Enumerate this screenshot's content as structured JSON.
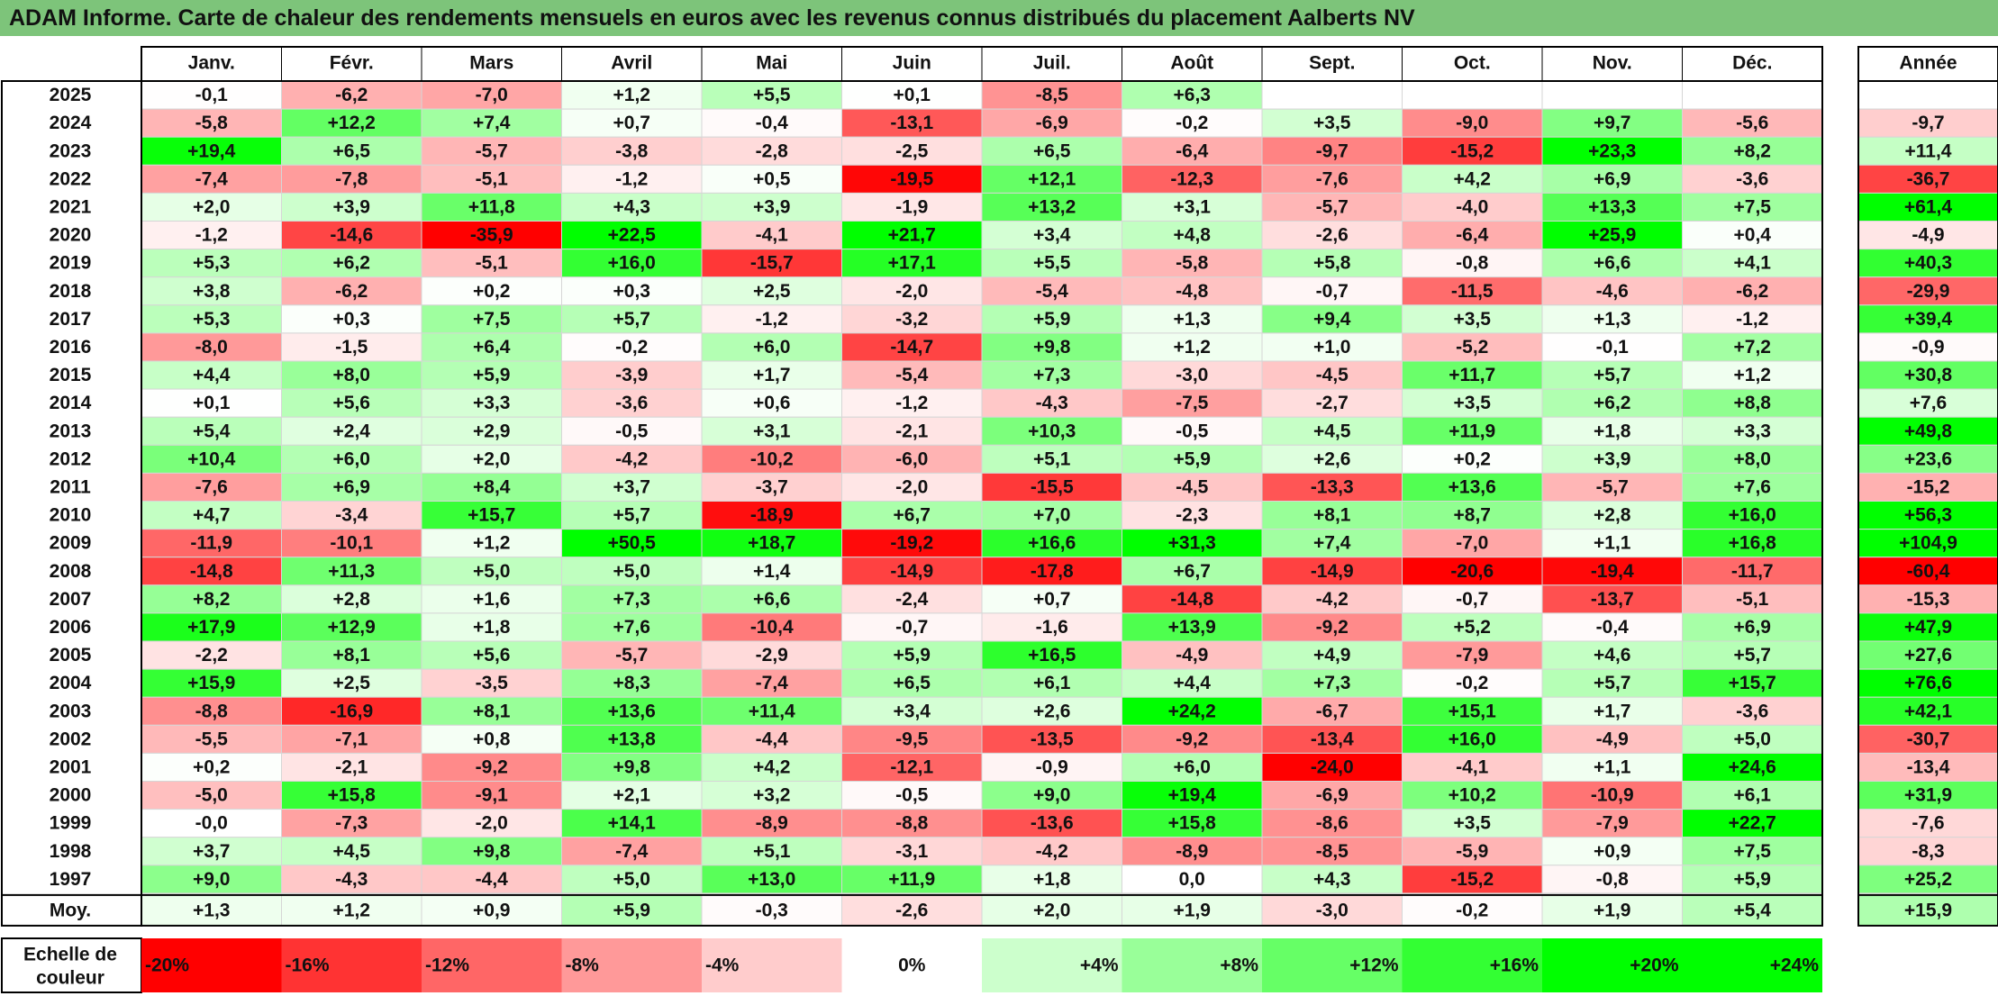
{
  "title": "ADAM Informe. Carte de chaleur des rendements mensuels en euros avec les revenus connus distribués du placement Aalberts NV",
  "chart_data": {
    "type": "heatmap",
    "title": "ADAM Informe. Carte de chaleur des rendements mensuels en euros avec les revenus connus distribués du placement Aalberts NV",
    "columns": [
      "Janv.",
      "Févr.",
      "Mars",
      "Avril",
      "Mai",
      "Juin",
      "Juil.",
      "Août",
      "Sept.",
      "Oct.",
      "Nov.",
      "Déc."
    ],
    "year_column_label": "Année",
    "rows": [
      {
        "year": "2025",
        "months": [
          "-0,1",
          "-6,2",
          "-7,0",
          "+1,2",
          "+5,5",
          "+0,1",
          "-8,5",
          "+6,3",
          "",
          "",
          "",
          ""
        ],
        "annual": ""
      },
      {
        "year": "2024",
        "months": [
          "-5,8",
          "+12,2",
          "+7,4",
          "+0,7",
          "-0,4",
          "-13,1",
          "-6,9",
          "-0,2",
          "+3,5",
          "-9,0",
          "+9,7",
          "-5,6"
        ],
        "annual": "-9,7"
      },
      {
        "year": "2023",
        "months": [
          "+19,4",
          "+6,5",
          "-5,7",
          "-3,8",
          "-2,8",
          "-2,5",
          "+6,5",
          "-6,4",
          "-9,7",
          "-15,2",
          "+23,3",
          "+8,2"
        ],
        "annual": "+11,4"
      },
      {
        "year": "2022",
        "months": [
          "-7,4",
          "-7,8",
          "-5,1",
          "-1,2",
          "+0,5",
          "-19,5",
          "+12,1",
          "-12,3",
          "-7,6",
          "+4,2",
          "+6,9",
          "-3,6"
        ],
        "annual": "-36,7"
      },
      {
        "year": "2021",
        "months": [
          "+2,0",
          "+3,9",
          "+11,8",
          "+4,3",
          "+3,9",
          "-1,9",
          "+13,2",
          "+3,1",
          "-5,7",
          "-4,0",
          "+13,3",
          "+7,5"
        ],
        "annual": "+61,4"
      },
      {
        "year": "2020",
        "months": [
          "-1,2",
          "-14,6",
          "-35,9",
          "+22,5",
          "-4,1",
          "+21,7",
          "+3,4",
          "+4,8",
          "-2,6",
          "-6,4",
          "+25,9",
          "+0,4"
        ],
        "annual": "-4,9"
      },
      {
        "year": "2019",
        "months": [
          "+5,3",
          "+6,2",
          "-5,1",
          "+16,0",
          "-15,7",
          "+17,1",
          "+5,5",
          "-5,8",
          "+5,8",
          "-0,8",
          "+6,6",
          "+4,1"
        ],
        "annual": "+40,3"
      },
      {
        "year": "2018",
        "months": [
          "+3,8",
          "-6,2",
          "+0,2",
          "+0,3",
          "+2,5",
          "-2,0",
          "-5,4",
          "-4,8",
          "-0,7",
          "-11,5",
          "-4,6",
          "-6,2"
        ],
        "annual": "-29,9"
      },
      {
        "year": "2017",
        "months": [
          "+5,3",
          "+0,3",
          "+7,5",
          "+5,7",
          "-1,2",
          "-3,2",
          "+5,9",
          "+1,3",
          "+9,4",
          "+3,5",
          "+1,3",
          "-1,2"
        ],
        "annual": "+39,4"
      },
      {
        "year": "2016",
        "months": [
          "-8,0",
          "-1,5",
          "+6,4",
          "-0,2",
          "+6,0",
          "-14,7",
          "+9,8",
          "+1,2",
          "+1,0",
          "-5,2",
          "-0,1",
          "+7,2"
        ],
        "annual": "-0,9"
      },
      {
        "year": "2015",
        "months": [
          "+4,4",
          "+8,0",
          "+5,9",
          "-3,9",
          "+1,7",
          "-5,4",
          "+7,3",
          "-3,0",
          "-4,5",
          "+11,7",
          "+5,7",
          "+1,2"
        ],
        "annual": "+30,8"
      },
      {
        "year": "2014",
        "months": [
          "+0,1",
          "+5,6",
          "+3,3",
          "-3,6",
          "+0,6",
          "-1,2",
          "-4,3",
          "-7,5",
          "-2,7",
          "+3,5",
          "+6,2",
          "+8,8"
        ],
        "annual": "+7,6"
      },
      {
        "year": "2013",
        "months": [
          "+5,4",
          "+2,4",
          "+2,9",
          "-0,5",
          "+3,1",
          "-2,1",
          "+10,3",
          "-0,5",
          "+4,5",
          "+11,9",
          "+1,8",
          "+3,3"
        ],
        "annual": "+49,8"
      },
      {
        "year": "2012",
        "months": [
          "+10,4",
          "+6,0",
          "+2,0",
          "-4,2",
          "-10,2",
          "-6,0",
          "+5,1",
          "+5,9",
          "+2,6",
          "+0,2",
          "+3,9",
          "+8,0"
        ],
        "annual": "+23,6"
      },
      {
        "year": "2011",
        "months": [
          "-7,6",
          "+6,9",
          "+8,4",
          "+3,7",
          "-3,7",
          "-2,0",
          "-15,5",
          "-4,5",
          "-13,3",
          "+13,6",
          "-5,7",
          "+7,6"
        ],
        "annual": "-15,2"
      },
      {
        "year": "2010",
        "months": [
          "+4,7",
          "-3,4",
          "+15,7",
          "+5,7",
          "-18,9",
          "+6,7",
          "+7,0",
          "-2,3",
          "+8,1",
          "+8,7",
          "+2,8",
          "+16,0"
        ],
        "annual": "+56,3"
      },
      {
        "year": "2009",
        "months": [
          "-11,9",
          "-10,1",
          "+1,2",
          "+50,5",
          "+18,7",
          "-19,2",
          "+16,6",
          "+31,3",
          "+7,4",
          "-7,0",
          "+1,1",
          "+16,8"
        ],
        "annual": "+104,9"
      },
      {
        "year": "2008",
        "months": [
          "-14,8",
          "+11,3",
          "+5,0",
          "+5,0",
          "+1,4",
          "-14,9",
          "-17,8",
          "+6,7",
          "-14,9",
          "-20,6",
          "-19,4",
          "-11,7"
        ],
        "annual": "-60,4"
      },
      {
        "year": "2007",
        "months": [
          "+8,2",
          "+2,8",
          "+1,6",
          "+7,3",
          "+6,6",
          "-2,4",
          "+0,7",
          "-14,8",
          "-4,2",
          "-0,7",
          "-13,7",
          "-5,1"
        ],
        "annual": "-15,3"
      },
      {
        "year": "2006",
        "months": [
          "+17,9",
          "+12,9",
          "+1,8",
          "+7,6",
          "-10,4",
          "-0,7",
          "-1,6",
          "+13,9",
          "-9,2",
          "+5,2",
          "-0,4",
          "+6,9"
        ],
        "annual": "+47,9"
      },
      {
        "year": "2005",
        "months": [
          "-2,2",
          "+8,1",
          "+5,6",
          "-5,7",
          "-2,9",
          "+5,9",
          "+16,5",
          "-4,9",
          "+4,9",
          "-7,9",
          "+4,6",
          "+5,7"
        ],
        "annual": "+27,6"
      },
      {
        "year": "2004",
        "months": [
          "+15,9",
          "+2,5",
          "-3,5",
          "+8,3",
          "-7,4",
          "+6,5",
          "+6,1",
          "+4,4",
          "+7,3",
          "-0,2",
          "+5,7",
          "+15,7"
        ],
        "annual": "+76,6"
      },
      {
        "year": "2003",
        "months": [
          "-8,8",
          "-16,9",
          "+8,1",
          "+13,6",
          "+11,4",
          "+3,4",
          "+2,6",
          "+24,2",
          "-6,7",
          "+15,1",
          "+1,7",
          "-3,6"
        ],
        "annual": "+42,1"
      },
      {
        "year": "2002",
        "months": [
          "-5,5",
          "-7,1",
          "+0,8",
          "+13,8",
          "-4,4",
          "-9,5",
          "-13,5",
          "-9,2",
          "-13,4",
          "+16,0",
          "-4,9",
          "+5,0"
        ],
        "annual": "-30,7"
      },
      {
        "year": "2001",
        "months": [
          "+0,2",
          "-2,1",
          "-9,2",
          "+9,8",
          "+4,2",
          "-12,1",
          "-0,9",
          "+6,0",
          "-24,0",
          "-4,1",
          "+1,1",
          "+24,6"
        ],
        "annual": "-13,4"
      },
      {
        "year": "2000",
        "months": [
          "-5,0",
          "+15,8",
          "-9,1",
          "+2,1",
          "+3,2",
          "-0,5",
          "+9,0",
          "+19,4",
          "-6,9",
          "+10,2",
          "-10,9",
          "+6,1"
        ],
        "annual": "+31,9"
      },
      {
        "year": "1999",
        "months": [
          "-0,0",
          "-7,3",
          "-2,0",
          "+14,1",
          "-8,9",
          "-8,8",
          "-13,6",
          "+15,8",
          "-8,6",
          "+3,5",
          "-7,9",
          "+22,7"
        ],
        "annual": "-7,6"
      },
      {
        "year": "1998",
        "months": [
          "+3,7",
          "+4,5",
          "+9,8",
          "-7,4",
          "+5,1",
          "-3,1",
          "-4,2",
          "-8,9",
          "-8,5",
          "-5,9",
          "+0,9",
          "+7,5"
        ],
        "annual": "-8,3"
      },
      {
        "year": "1997",
        "months": [
          "+9,0",
          "-4,3",
          "-4,4",
          "+5,0",
          "+13,0",
          "+11,9",
          "+1,8",
          "0,0",
          "+4,3",
          "-15,2",
          "-0,8",
          "+5,9"
        ],
        "annual": "+25,2"
      }
    ],
    "average": {
      "label": "Moy.",
      "months": [
        "+1,3",
        "+1,2",
        "+0,9",
        "+5,9",
        "-0,3",
        "-2,6",
        "+2,0",
        "+1,9",
        "-3,0",
        "-0,2",
        "+1,9",
        "+5,4"
      ],
      "annual": "+15,9"
    },
    "color_scale": {
      "label_line1": "Echelle de",
      "label_line2": "couleur",
      "steps": [
        {
          "label": "-20%",
          "value": -20
        },
        {
          "label": "-16%",
          "value": -16
        },
        {
          "label": "-12%",
          "value": -12
        },
        {
          "label": "-8%",
          "value": -8
        },
        {
          "label": "-4%",
          "value": -4
        },
        {
          "label": "0%",
          "value": 0
        },
        {
          "label": "+4%",
          "value": 4
        },
        {
          "label": "+8%",
          "value": 8
        },
        {
          "label": "+12%",
          "value": 12
        },
        {
          "label": "+16%",
          "value": 16
        },
        {
          "label": "+20%",
          "value": 20
        },
        {
          "label": "+24%",
          "value": 24
        }
      ]
    },
    "color_negative": "#ff0000",
    "color_neutral": "#ffffff",
    "color_positive": "#00ff00",
    "monthly_saturation_abs": 20,
    "annual_saturation_abs": 50
  }
}
